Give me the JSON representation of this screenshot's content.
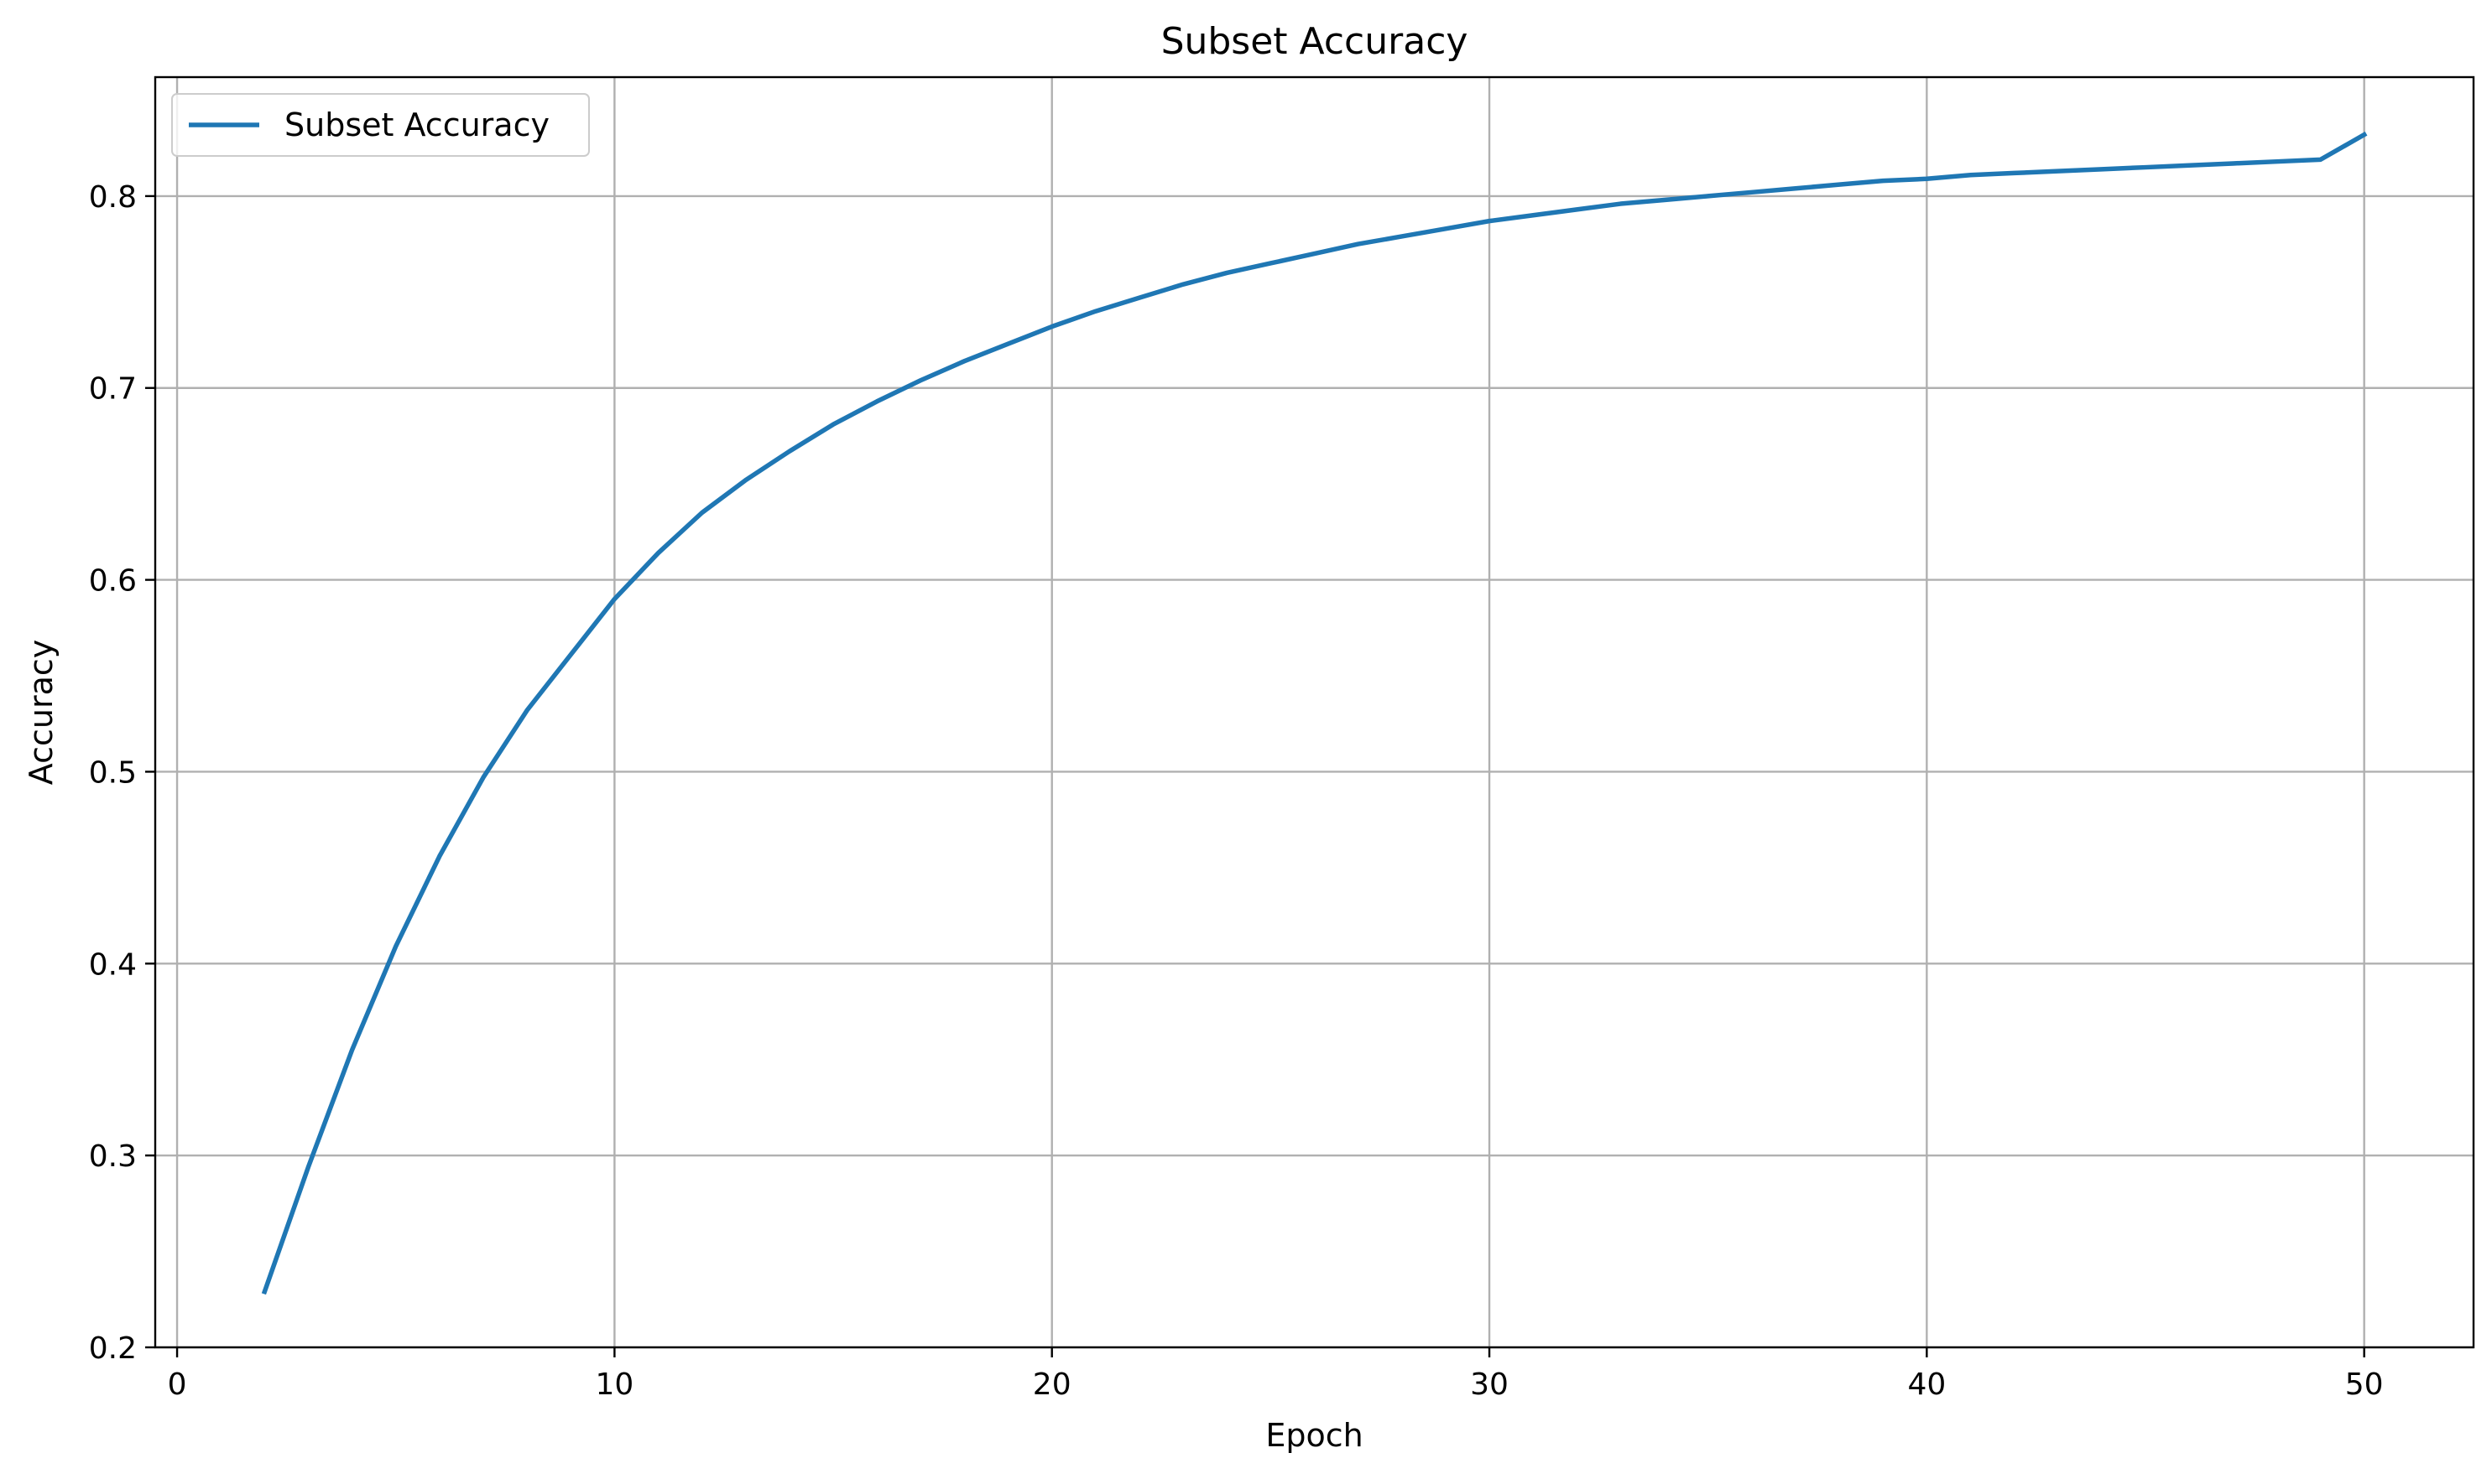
{
  "chart_data": {
    "type": "line",
    "title": "Subset Accuracy",
    "xlabel": "Epoch",
    "ylabel": "Accuracy",
    "xlim": [
      -0.5,
      52.5
    ],
    "ylim": [
      0.2,
      0.862
    ],
    "xticks": [
      0,
      10,
      20,
      30,
      40,
      50
    ],
    "yticks": [
      0.2,
      0.3,
      0.4,
      0.5,
      0.6,
      0.7,
      0.8
    ],
    "grid": true,
    "legend_position": "top-left",
    "series": [
      {
        "name": "Subset Accuracy",
        "color": "#1f77b4",
        "x": [
          2,
          3,
          4,
          5,
          6,
          7,
          8,
          9,
          10,
          11,
          12,
          13,
          14,
          15,
          16,
          17,
          18,
          19,
          20,
          21,
          22,
          23,
          24,
          25,
          26,
          27,
          28,
          29,
          30,
          31,
          32,
          33,
          34,
          35,
          36,
          37,
          38,
          39,
          40,
          41,
          42,
          43,
          44,
          45,
          46,
          47,
          48,
          49,
          50
        ],
        "y": [
          0.229,
          0.294,
          0.355,
          0.409,
          0.456,
          0.497,
          0.532,
          0.561,
          0.59,
          0.614,
          0.635,
          0.652,
          0.667,
          0.681,
          0.693,
          0.704,
          0.714,
          0.723,
          0.732,
          0.74,
          0.747,
          0.754,
          0.76,
          0.765,
          0.77,
          0.775,
          0.779,
          0.783,
          0.787,
          0.79,
          0.793,
          0.796,
          0.798,
          0.8,
          0.802,
          0.804,
          0.806,
          0.808,
          0.809,
          0.811,
          0.812,
          0.813,
          0.814,
          0.815,
          0.816,
          0.817,
          0.818,
          0.819,
          0.832
        ]
      }
    ]
  }
}
